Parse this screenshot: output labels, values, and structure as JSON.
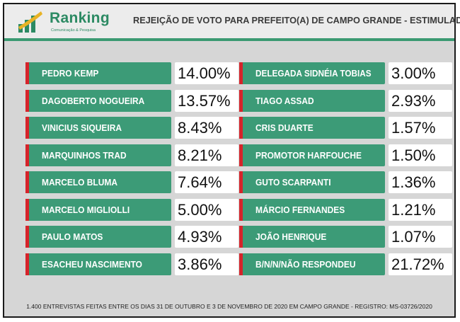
{
  "brand": {
    "name": "Ranking",
    "subtitle": "Comunicação & Pesquisa",
    "color": "#2c8a63"
  },
  "header": {
    "title": "REJEIÇÃO DE VOTO PARA PREFEITO(A) DE CAMPO GRANDE - ESTIMULADA"
  },
  "footer": {
    "note": "1.400 ENTREVISTAS FEITAS ENTRE OS  DIAS 31 DE OUTUBRO E 3 DE NOVEMBRO DE 2020 EM CAMPO GRANDE - REGISTRO:  MS-03726/2020"
  },
  "colors": {
    "bar": "#3c9b77",
    "accent": "#d6242b",
    "background": "#d6d6d6"
  },
  "chart_data": {
    "type": "table",
    "title": "REJEIÇÃO DE VOTO PARA PREFEITO(A) DE CAMPO GRANDE - ESTIMULADA",
    "unit": "%",
    "columns": [
      {
        "rows": [
          {
            "name": "PEDRO KEMP",
            "value": 14.0,
            "label": "14.00%"
          },
          {
            "name": "DAGOBERTO NOGUEIRA",
            "value": 13.57,
            "label": "13.57%"
          },
          {
            "name": "VINICIUS SIQUEIRA",
            "value": 8.43,
            "label": "8.43%"
          },
          {
            "name": "MARQUINHOS TRAD",
            "value": 8.21,
            "label": "8.21%"
          },
          {
            "name": "MARCELO BLUMA",
            "value": 7.64,
            "label": "7.64%"
          },
          {
            "name": "MARCELO MIGLIOLLI",
            "value": 5.0,
            "label": "5.00%"
          },
          {
            "name": "PAULO MATOS",
            "value": 4.93,
            "label": "4.93%"
          },
          {
            "name": "ESACHEU NASCIMENTO",
            "value": 3.86,
            "label": "3.86%"
          }
        ]
      },
      {
        "rows": [
          {
            "name": "DELEGADA SIDNÉIA TOBIAS",
            "value": 3.0,
            "label": "3.00%"
          },
          {
            "name": "TIAGO ASSAD",
            "value": 2.93,
            "label": "2.93%"
          },
          {
            "name": "CRIS DUARTE",
            "value": 1.57,
            "label": "1.57%"
          },
          {
            "name": "PROMOTOR HARFOUCHE",
            "value": 1.5,
            "label": "1.50%"
          },
          {
            "name": "GUTO SCARPANTI",
            "value": 1.36,
            "label": "1.36%"
          },
          {
            "name": "MÁRCIO FERNANDES",
            "value": 1.21,
            "label": "1.21%"
          },
          {
            "name": "JOÃO HENRIQUE",
            "value": 1.07,
            "label": "1.07%"
          },
          {
            "name": "B/N/N/NÃO RESPONDEU",
            "value": 21.72,
            "label": "21.72%"
          }
        ]
      }
    ]
  }
}
